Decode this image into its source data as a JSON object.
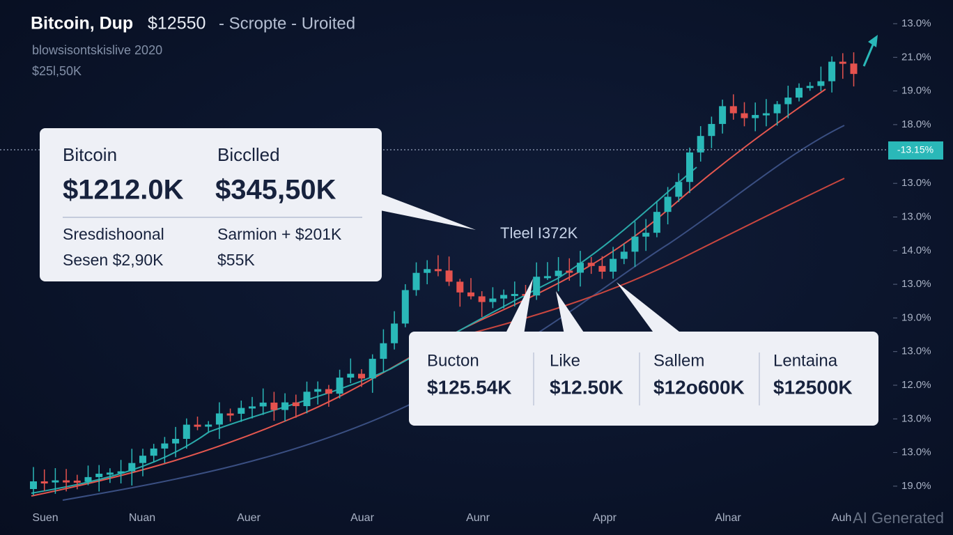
{
  "header": {
    "title": "Bitcoin, Dup",
    "price": "$12550",
    "status": "- Scropte - Uroited",
    "subtitle": "blowsisontskislive 2020",
    "value": "$25l,50K"
  },
  "y_axis_labels": [
    "13.0%",
    "21.0%",
    "19.0%",
    "18.0%",
    "13.0%",
    "13.0%",
    "14.0%",
    "13.0%",
    "19.0%",
    "13.0%",
    "12.0%",
    "13.0%",
    "13.0%",
    "19.0%"
  ],
  "price_tag": "-13.15%",
  "x_axis_labels": [
    "Suen",
    "Nuan",
    "Auer",
    "Auar",
    "Aunr",
    "Appr",
    "Alnar",
    "Auh"
  ],
  "annotation": "Tleel I372K",
  "summary_card": {
    "columns": [
      {
        "label": "Bitcoin",
        "value": "$1212.0K"
      },
      {
        "label": "Bicclled",
        "value": "$345,50K"
      }
    ],
    "details": [
      [
        "Sresdishoonal",
        "Sesen $2,90K"
      ],
      [
        "Sarmion + $201K",
        "$55K"
      ]
    ]
  },
  "stats_card": [
    {
      "label": "Bucton",
      "value": "$125.54K"
    },
    {
      "label": "Like",
      "value": "$12.50K"
    },
    {
      "label": "Sallem",
      "value": "$12o600K"
    },
    {
      "label": "Lentaina",
      "value": "$12500K"
    }
  ],
  "watermark": "AI Generated"
}
